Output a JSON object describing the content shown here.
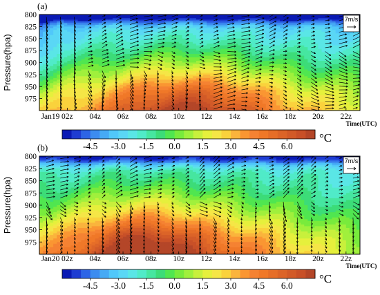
{
  "chart_data": [
    {
      "type": "heatmap",
      "panel_label": "(a)",
      "ylabel": "Pressure(hpa)",
      "xlabel": "Time(UTC)",
      "x_start_label": "Jan19",
      "x_tick_labels": [
        "Jan19",
        "02z",
        "04z",
        "06z",
        "08z",
        "10z",
        "12z",
        "14z",
        "16z",
        "18z",
        "20z",
        "22z"
      ],
      "x_hours": [
        0,
        2,
        4,
        6,
        8,
        10,
        12,
        14,
        16,
        18,
        20,
        22
      ],
      "xlim": [
        0,
        23
      ],
      "y_tick_labels": [
        "800",
        "825",
        "850",
        "875",
        "900",
        "925",
        "950",
        "975"
      ],
      "y_ticks_hpa": [
        800,
        825,
        850,
        875,
        900,
        925,
        950,
        975
      ],
      "ylim_hpa": [
        800,
        1000
      ],
      "y_axis_reversed": true,
      "colorbar_ticks": [
        "-4.5",
        "-3.0",
        "-1.5",
        "0.0",
        "1.5",
        "3.0",
        "4.5",
        "6.0"
      ],
      "colorbar_range": [
        -6.0,
        7.5
      ],
      "colorbar_step": 0.5,
      "colorbar_unit": "°C",
      "wind_reference": "7m/s",
      "field_pattern": {
        "cold_aloft_c": -5.5,
        "surface_peak_c": 6.0,
        "peak_time_hours": [
          4,
          18
        ],
        "peak_levels_hpa": [
          955,
          1000
        ]
      }
    },
    {
      "type": "heatmap",
      "panel_label": "(b)",
      "ylabel": "Pressure(hpa)",
      "xlabel": "Time(UTC)",
      "x_start_label": "Jan20",
      "x_tick_labels": [
        "Jan20",
        "02z",
        "04z",
        "06z",
        "08z",
        "10z",
        "12z",
        "14z",
        "16z",
        "18z",
        "20z",
        "22z"
      ],
      "x_hours": [
        0,
        2,
        4,
        6,
        8,
        10,
        12,
        14,
        16,
        18,
        20,
        22
      ],
      "xlim": [
        0,
        23
      ],
      "y_tick_labels": [
        "800",
        "825",
        "850",
        "875",
        "900",
        "925",
        "950",
        "975"
      ],
      "y_ticks_hpa": [
        800,
        825,
        850,
        875,
        900,
        925,
        950,
        975
      ],
      "ylim_hpa": [
        800,
        1000
      ],
      "y_axis_reversed": true,
      "colorbar_ticks": [
        "-4.5",
        "-3.0",
        "-1.5",
        "0.0",
        "1.5",
        "3.0",
        "4.5",
        "6.0"
      ],
      "colorbar_range": [
        -6.0,
        7.5
      ],
      "colorbar_step": 0.5,
      "colorbar_unit": "°C",
      "wind_reference": "7m/s",
      "field_pattern": {
        "cold_aloft_c": -4.5,
        "surface_peak_c": 6.0,
        "peak_time_hours": [
          4,
          10
        ],
        "peak_levels_hpa": [
          960,
          1000
        ]
      }
    }
  ],
  "colorbar_colors": [
    "#0a1ab4",
    "#1e3cd2",
    "#2d64e6",
    "#3c8cf0",
    "#46aaf5",
    "#50c8fa",
    "#5ad7f5",
    "#5ae6e6",
    "#50ebc8",
    "#46e6a0",
    "#3cdc78",
    "#50e650",
    "#78eb3c",
    "#a0f03c",
    "#c8f03c",
    "#e6f03c",
    "#f5e646",
    "#fad23c",
    "#fab43c",
    "#fa9632",
    "#f58232",
    "#f07828",
    "#e66e28",
    "#dc6428",
    "#d25a28",
    "#c85028",
    "#b44628"
  ],
  "colors": {
    "arrow": "#000000",
    "axis": "#000000"
  }
}
